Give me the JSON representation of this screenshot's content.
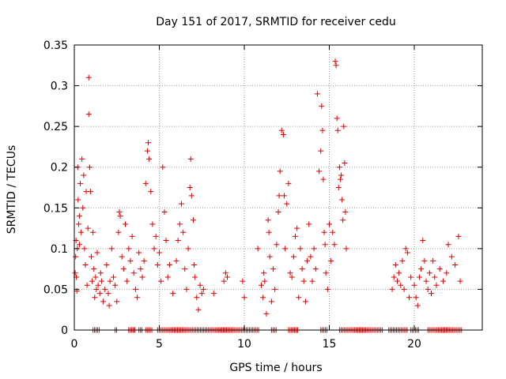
{
  "chart_data": {
    "type": "scatter",
    "title": "Day 151 of 2017, SRMTID for receiver cedu",
    "xlabel": "GPS time / hours",
    "ylabel": "SRMTID / TECUs",
    "xlim": [
      0,
      24
    ],
    "ylim": [
      0,
      0.35
    ],
    "xticks": [
      0,
      5,
      10,
      15,
      20
    ],
    "yticks": [
      0,
      0.05,
      0.1,
      0.15,
      0.2,
      0.25,
      0.3,
      0.35
    ],
    "xtick_labels": [
      "0",
      "5",
      "10",
      "15",
      "20"
    ],
    "ytick_labels": [
      "0",
      "0.05",
      "0.1",
      "0.15",
      "0.2",
      "0.25",
      "0.3",
      "0.35"
    ],
    "grid": true,
    "marker": "+",
    "marker_color": "#dd0000",
    "series": [
      {
        "name": "SRMTID",
        "points": [
          [
            0.05,
            0.07
          ],
          [
            0.08,
            0.09
          ],
          [
            0.1,
            0.11
          ],
          [
            0.12,
            0.065
          ],
          [
            0.15,
            0.048
          ],
          [
            0.18,
            0.1
          ],
          [
            0.2,
            0.2
          ],
          [
            0.22,
            0.16
          ],
          [
            0.25,
            0.13
          ],
          [
            0.3,
            0.14
          ],
          [
            0.3,
            0.105
          ],
          [
            0.35,
            0.18
          ],
          [
            0.4,
            0.12
          ],
          [
            0.45,
            0.21
          ],
          [
            0.5,
            0.15
          ],
          [
            0.55,
            0.19
          ],
          [
            0.6,
            0.1
          ],
          [
            0.65,
            0.08
          ],
          [
            0.7,
            0.17
          ],
          [
            0.75,
            0.055
          ],
          [
            0.8,
            0.125
          ],
          [
            0.85,
            0.31
          ],
          [
            0.85,
            0.265
          ],
          [
            0.9,
            0.2
          ],
          [
            0.95,
            0.17
          ],
          [
            1.0,
            0.09
          ],
          [
            1.05,
            0.06
          ],
          [
            1.1,
            0.12
          ],
          [
            1.15,
            0.075
          ],
          [
            1.2,
            0.04
          ],
          [
            1.25,
            0.065
          ],
          [
            1.3,
            0.05
          ],
          [
            1.35,
            0.095
          ],
          [
            1.4,
            0.055
          ],
          [
            1.5,
            0.045
          ],
          [
            1.55,
            0.07
          ],
          [
            1.6,
            0.06
          ],
          [
            1.7,
            0.035
          ],
          [
            1.8,
            0.05
          ],
          [
            1.9,
            0.08
          ],
          [
            2.0,
            0.045
          ],
          [
            2.05,
            0.03
          ],
          [
            2.1,
            0.06
          ],
          [
            2.2,
            0.1
          ],
          [
            2.3,
            0.065
          ],
          [
            2.4,
            0.055
          ],
          [
            2.5,
            0.035
          ],
          [
            2.6,
            0.12
          ],
          [
            2.65,
            0.145
          ],
          [
            2.7,
            0.14
          ],
          [
            2.8,
            0.09
          ],
          [
            2.9,
            0.075
          ],
          [
            3.0,
            0.13
          ],
          [
            3.1,
            0.06
          ],
          [
            3.2,
            0.1
          ],
          [
            3.3,
            0.085
          ],
          [
            3.4,
            0.115
          ],
          [
            3.5,
            0.07
          ],
          [
            3.6,
            0.05
          ],
          [
            3.7,
            0.04
          ],
          [
            3.8,
            0.095
          ],
          [
            3.9,
            0.075
          ],
          [
            4.0,
            0.065
          ],
          [
            4.1,
            0.085
          ],
          [
            4.2,
            0.18
          ],
          [
            4.3,
            0.22
          ],
          [
            4.35,
            0.23
          ],
          [
            4.4,
            0.21
          ],
          [
            4.5,
            0.17
          ],
          [
            4.6,
            0.13
          ],
          [
            4.7,
            0.1
          ],
          [
            4.8,
            0.115
          ],
          [
            4.9,
            0.08
          ],
          [
            5.0,
            0.095
          ],
          [
            5.1,
            0.06
          ],
          [
            5.2,
            0.2
          ],
          [
            5.3,
            0.145
          ],
          [
            5.4,
            0.11
          ],
          [
            5.5,
            0.065
          ],
          [
            5.6,
            0.08
          ],
          [
            5.8,
            0.045
          ],
          [
            6.0,
            0.085
          ],
          [
            6.1,
            0.11
          ],
          [
            6.2,
            0.13
          ],
          [
            6.3,
            0.155
          ],
          [
            6.4,
            0.12
          ],
          [
            6.5,
            0.075
          ],
          [
            6.6,
            0.05
          ],
          [
            6.7,
            0.1
          ],
          [
            6.8,
            0.175
          ],
          [
            6.85,
            0.21
          ],
          [
            6.9,
            0.165
          ],
          [
            7.0,
            0.135
          ],
          [
            7.05,
            0.08
          ],
          [
            7.1,
            0.065
          ],
          [
            7.2,
            0.04
          ],
          [
            7.3,
            0.025
          ],
          [
            7.4,
            0.055
          ],
          [
            7.5,
            0.045
          ],
          [
            7.6,
            0.05
          ],
          [
            8.2,
            0.045
          ],
          [
            8.8,
            0.06
          ],
          [
            8.9,
            0.07
          ],
          [
            9.0,
            0.065
          ],
          [
            9.9,
            0.06
          ],
          [
            10.0,
            0.04
          ],
          [
            10.8,
            0.1
          ],
          [
            11.0,
            0.055
          ],
          [
            11.1,
            0.04
          ],
          [
            11.15,
            0.07
          ],
          [
            11.2,
            0.06
          ],
          [
            11.3,
            0.02
          ],
          [
            11.4,
            0.135
          ],
          [
            11.45,
            0.12
          ],
          [
            11.5,
            0.09
          ],
          [
            11.6,
            0.035
          ],
          [
            11.7,
            0.075
          ],
          [
            11.8,
            0.05
          ],
          [
            11.9,
            0.105
          ],
          [
            12.0,
            0.145
          ],
          [
            12.05,
            0.165
          ],
          [
            12.1,
            0.195
          ],
          [
            12.2,
            0.245
          ],
          [
            12.3,
            0.24
          ],
          [
            12.35,
            0.165
          ],
          [
            12.4,
            0.1
          ],
          [
            12.5,
            0.155
          ],
          [
            12.6,
            0.18
          ],
          [
            12.7,
            0.07
          ],
          [
            12.8,
            0.065
          ],
          [
            12.9,
            0.09
          ],
          [
            13.0,
            0.115
          ],
          [
            13.1,
            0.125
          ],
          [
            13.2,
            0.04
          ],
          [
            13.3,
            0.1
          ],
          [
            13.4,
            0.075
          ],
          [
            13.5,
            0.06
          ],
          [
            13.6,
            0.035
          ],
          [
            13.7,
            0.085
          ],
          [
            13.8,
            0.13
          ],
          [
            13.9,
            0.09
          ],
          [
            14.0,
            0.06
          ],
          [
            14.1,
            0.1
          ],
          [
            14.2,
            0.075
          ],
          [
            14.3,
            0.29
          ],
          [
            14.4,
            0.195
          ],
          [
            14.5,
            0.22
          ],
          [
            14.55,
            0.275
          ],
          [
            14.6,
            0.245
          ],
          [
            14.65,
            0.185
          ],
          [
            14.7,
            0.12
          ],
          [
            14.75,
            0.105
          ],
          [
            14.8,
            0.07
          ],
          [
            14.9,
            0.05
          ],
          [
            15.0,
            0.13
          ],
          [
            15.1,
            0.085
          ],
          [
            15.2,
            0.12
          ],
          [
            15.3,
            0.105
          ],
          [
            15.35,
            0.33
          ],
          [
            15.4,
            0.325
          ],
          [
            15.45,
            0.26
          ],
          [
            15.5,
            0.245
          ],
          [
            15.55,
            0.175
          ],
          [
            15.6,
            0.2
          ],
          [
            15.65,
            0.185
          ],
          [
            15.7,
            0.19
          ],
          [
            15.75,
            0.16
          ],
          [
            15.8,
            0.135
          ],
          [
            15.85,
            0.25
          ],
          [
            15.9,
            0.205
          ],
          [
            15.95,
            0.145
          ],
          [
            16.0,
            0.1
          ],
          [
            18.7,
            0.05
          ],
          [
            18.8,
            0.065
          ],
          [
            18.9,
            0.08
          ],
          [
            19.0,
            0.06
          ],
          [
            19.1,
            0.07
          ],
          [
            19.2,
            0.055
          ],
          [
            19.3,
            0.085
          ],
          [
            19.4,
            0.05
          ],
          [
            19.5,
            0.1
          ],
          [
            19.6,
            0.095
          ],
          [
            19.7,
            0.04
          ],
          [
            19.8,
            0.065
          ],
          [
            20.0,
            0.055
          ],
          [
            20.1,
            0.04
          ],
          [
            20.2,
            0.03
          ],
          [
            20.3,
            0.065
          ],
          [
            20.4,
            0.075
          ],
          [
            20.5,
            0.11
          ],
          [
            20.6,
            0.085
          ],
          [
            20.7,
            0.06
          ],
          [
            20.8,
            0.05
          ],
          [
            20.9,
            0.07
          ],
          [
            21.0,
            0.045
          ],
          [
            21.1,
            0.085
          ],
          [
            21.2,
            0.065
          ],
          [
            21.3,
            0.055
          ],
          [
            21.5,
            0.075
          ],
          [
            21.7,
            0.06
          ],
          [
            21.9,
            0.07
          ],
          [
            22.0,
            0.105
          ],
          [
            22.2,
            0.09
          ],
          [
            22.4,
            0.08
          ],
          [
            22.6,
            0.115
          ],
          [
            22.7,
            0.06
          ]
        ],
        "zero_segments": [
          [
            1.1,
            1.5
          ],
          [
            2.4,
            2.5
          ],
          [
            3.2,
            3.6
          ],
          [
            3.8,
            4.0
          ],
          [
            4.2,
            4.6
          ],
          [
            4.9,
            10.9
          ],
          [
            11.6,
            11.9
          ],
          [
            12.6,
            13.2
          ],
          [
            14.5,
            14.9
          ],
          [
            15.6,
            18.2
          ],
          [
            18.5,
            19.6
          ],
          [
            19.8,
            20.3
          ],
          [
            20.8,
            22.8
          ]
        ]
      }
    ]
  }
}
